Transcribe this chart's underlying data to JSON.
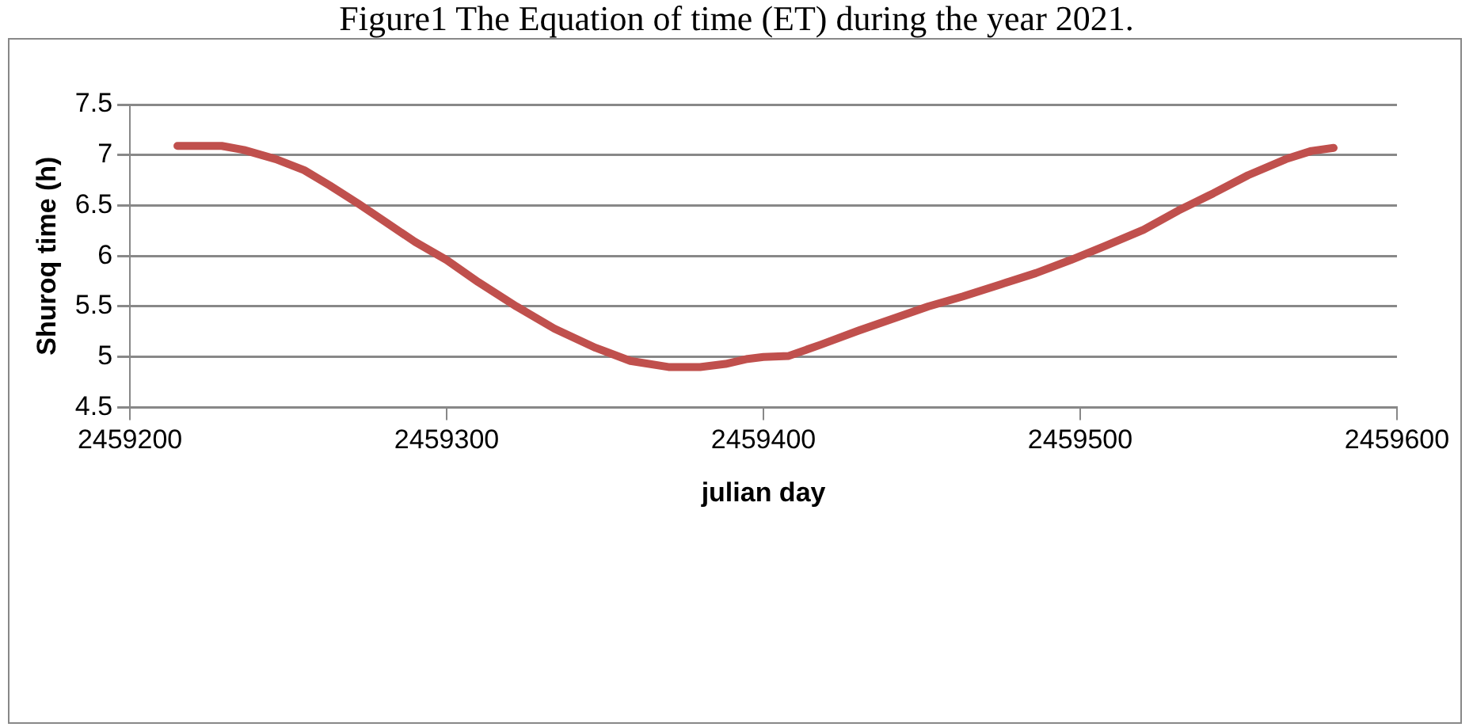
{
  "chart_data": {
    "type": "line",
    "title": "Figure1 The Equation of time (ET) during the year 2021.",
    "xlabel": "julian day",
    "ylabel": "Shuroq time (h)",
    "series": [
      {
        "color": "#c0504d",
        "x": [
          2459215,
          2459222,
          2459229,
          2459236,
          2459246,
          2459255,
          2459263,
          2459272,
          2459281,
          2459290,
          2459300,
          2459310,
          2459322,
          2459334,
          2459347,
          2459358,
          2459370,
          2459380,
          2459388,
          2459395,
          2459400,
          2459408,
          2459418,
          2459430,
          2459441,
          2459452,
          2459463,
          2459475,
          2459486,
          2459497,
          2459508,
          2459520,
          2459531,
          2459542,
          2459553,
          2459565,
          2459573,
          2459580
        ],
        "values": [
          7.09,
          7.09,
          7.09,
          7.05,
          6.96,
          6.85,
          6.7,
          6.52,
          6.33,
          6.14,
          5.96,
          5.74,
          5.5,
          5.28,
          5.09,
          4.96,
          4.9,
          4.9,
          4.93,
          4.98,
          5.0,
          5.01,
          5.12,
          5.26,
          5.38,
          5.5,
          5.6,
          5.72,
          5.83,
          5.96,
          6.1,
          6.26,
          6.45,
          6.62,
          6.8,
          6.96,
          7.04,
          7.07
        ]
      }
    ],
    "xlim": [
      2459200,
      2459600
    ],
    "xticks": [
      2459200,
      2459300,
      2459400,
      2459500,
      2459600
    ],
    "ylim": [
      4.5,
      7.5
    ],
    "yticks": [
      4.5,
      5,
      5.5,
      6,
      6.5,
      7,
      7.5
    ],
    "grid": "y",
    "legend": false,
    "marker": "none",
    "line_style": "solid"
  }
}
